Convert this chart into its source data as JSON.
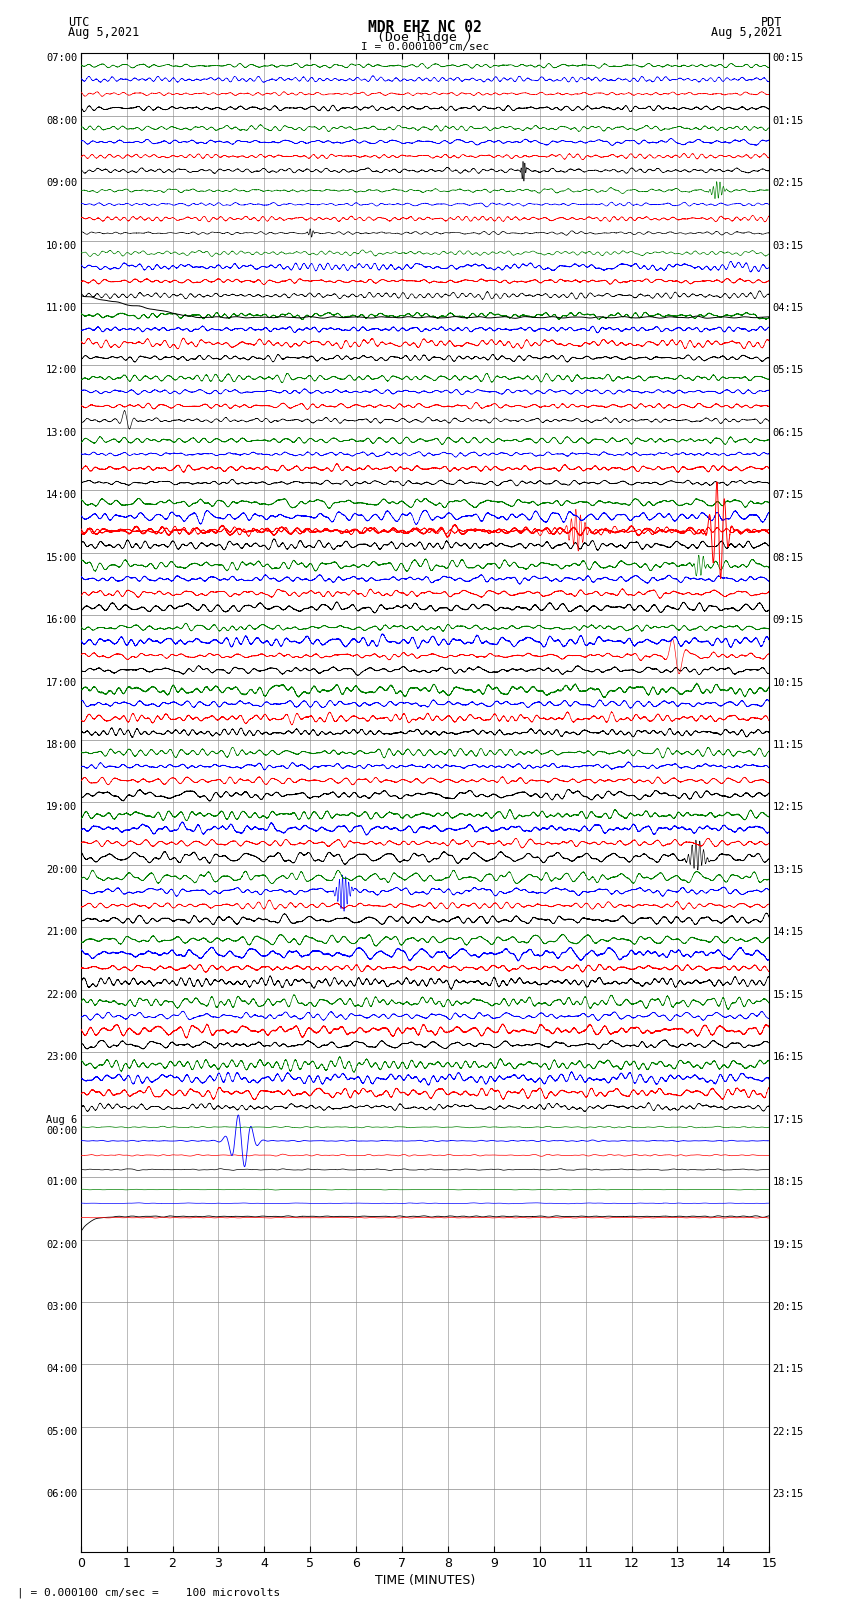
{
  "title_line1": "MDR EHZ NC 02",
  "title_line2": "(Doe Ridge )",
  "scale_text": "I = 0.000100 cm/sec",
  "legend_text": "| = 0.000100 cm/sec =    100 microvolts",
  "utc_label": "UTC",
  "utc_date": "Aug 5,2021",
  "pdt_label": "PDT",
  "pdt_date": "Aug 5,2021",
  "xlabel": "TIME (MINUTES)",
  "bg_color": "#ffffff",
  "grid_color": "#888888",
  "left_times_utc": [
    "07:00",
    "08:00",
    "09:00",
    "10:00",
    "11:00",
    "12:00",
    "13:00",
    "14:00",
    "15:00",
    "16:00",
    "17:00",
    "18:00",
    "19:00",
    "20:00",
    "21:00",
    "22:00",
    "23:00",
    "Aug 6\n00:00",
    "01:00",
    "02:00",
    "03:00",
    "04:00",
    "05:00",
    "06:00"
  ],
  "right_times_pdt": [
    "00:15",
    "01:15",
    "02:15",
    "03:15",
    "04:15",
    "05:15",
    "06:15",
    "07:15",
    "08:15",
    "09:15",
    "10:15",
    "11:15",
    "12:15",
    "13:15",
    "14:15",
    "15:15",
    "16:15",
    "17:15",
    "18:15",
    "19:15",
    "20:15",
    "21:15",
    "22:15",
    "23:15"
  ],
  "num_rows": 24,
  "xmin": 0,
  "xmax": 15,
  "noise_seed": 42
}
